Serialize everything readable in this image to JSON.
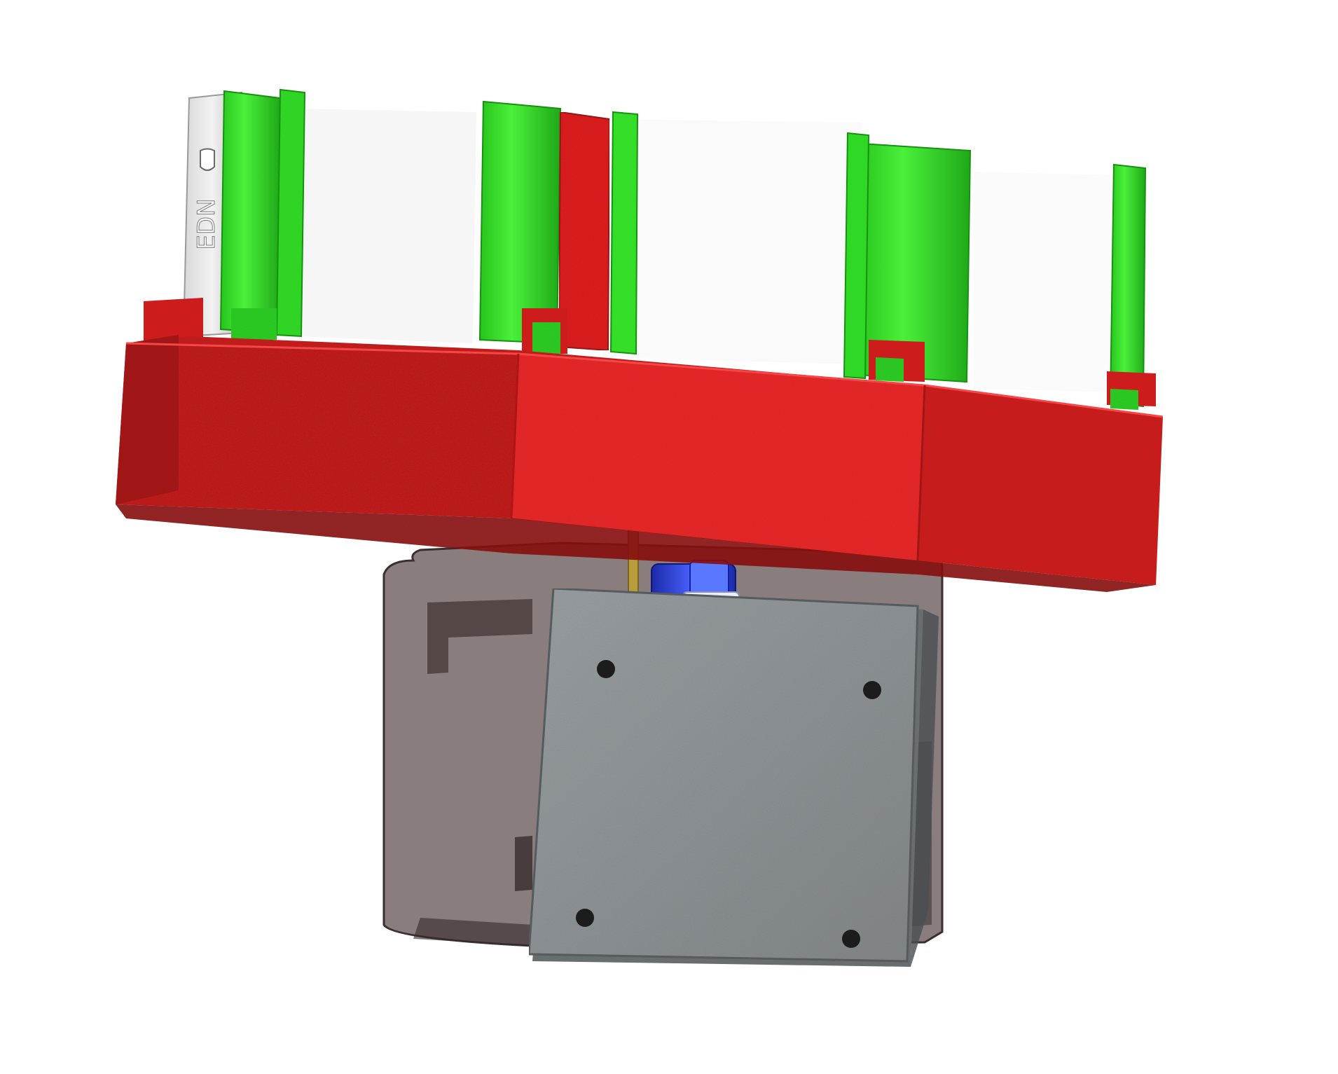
{
  "render": {
    "card_label": "EDN"
  },
  "colors": {
    "background": "#ffffff",
    "base_red": "#e02222",
    "base_red_dark": "#b81a1a",
    "base_red_light": "#f03030",
    "slot_green": "#3ae62a",
    "slot_green_dark": "#22b81c",
    "card_white": "#f4f4f4",
    "card_grey": "#c8c8c8",
    "plate_grey": "#8e9396",
    "plate_grey_dark": "#6b7073",
    "housing_smoke": "#5a4a4a",
    "roller_blue": "#2233cc",
    "shaft_gold": "#b8a040"
  }
}
